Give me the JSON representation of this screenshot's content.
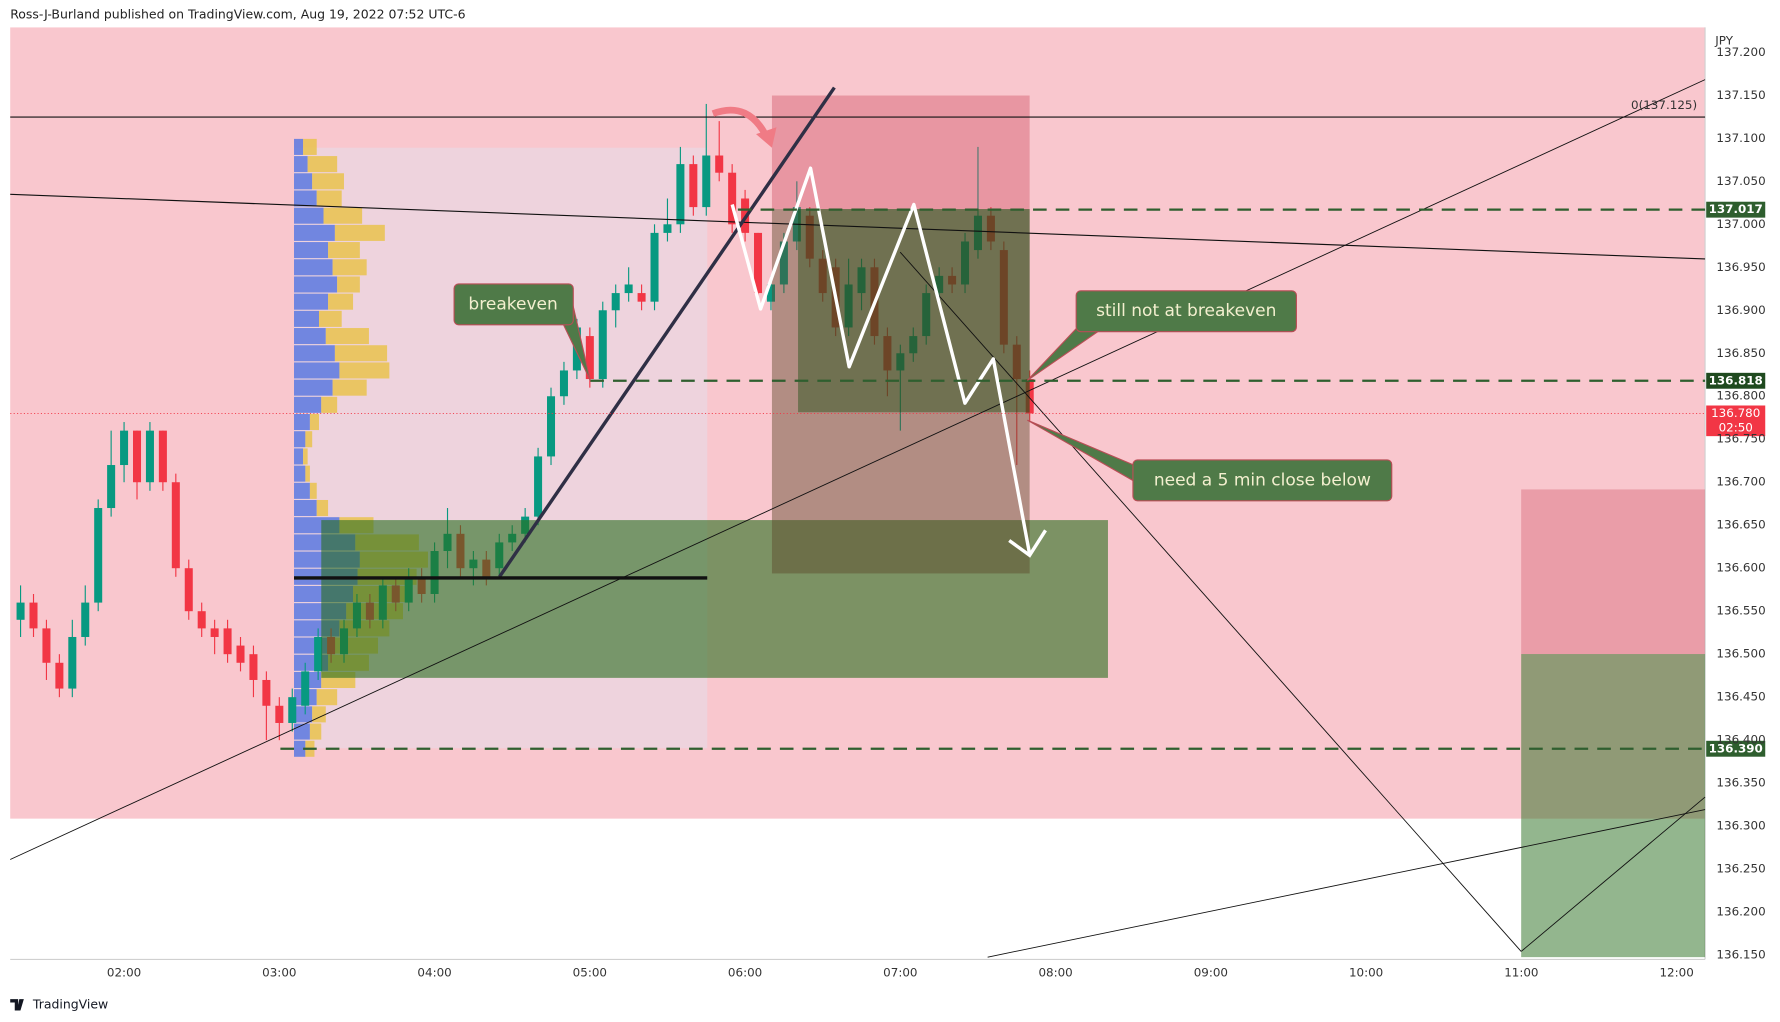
{
  "header": "Ross-J-Burland published on TradingView.com, Aug 19, 2022 07:52 UTC-6",
  "footer_logo": "TradingView",
  "chart_data": {
    "type": "candlestick",
    "currency": "JPY",
    "x": [
      "01:20",
      "01:25",
      "01:30",
      "01:35",
      "01:40",
      "01:45",
      "01:50",
      "01:55",
      "02:00",
      "02:05",
      "02:10",
      "02:15",
      "02:20",
      "02:25",
      "02:30",
      "02:35",
      "02:40",
      "02:45",
      "02:50",
      "02:55",
      "03:00",
      "03:05",
      "03:10",
      "03:15",
      "03:20",
      "03:25",
      "03:30",
      "03:35",
      "03:40",
      "03:45",
      "03:50",
      "03:55",
      "04:00",
      "04:05",
      "04:10",
      "04:15",
      "04:20",
      "04:25",
      "04:30",
      "04:35",
      "04:40",
      "04:45",
      "04:50",
      "04:55",
      "05:00",
      "05:05",
      "05:10",
      "05:15",
      "05:20",
      "05:25",
      "05:30",
      "05:35",
      "05:40",
      "05:45",
      "05:50",
      "05:55",
      "06:00",
      "06:05",
      "06:10",
      "06:15",
      "06:20",
      "06:25",
      "06:30",
      "06:35",
      "06:40",
      "06:45",
      "06:50",
      "06:55",
      "07:00",
      "07:05",
      "07:10",
      "07:15",
      "07:20",
      "07:25",
      "07:30",
      "07:35",
      "07:40",
      "07:45",
      "07:50"
    ],
    "open": [
      136.54,
      136.56,
      136.53,
      136.49,
      136.46,
      136.52,
      136.56,
      136.67,
      136.72,
      136.76,
      136.7,
      136.76,
      136.7,
      136.6,
      136.55,
      136.53,
      136.53,
      136.51,
      136.5,
      136.47,
      136.44,
      136.42,
      136.44,
      136.48,
      136.52,
      136.5,
      136.53,
      136.56,
      136.54,
      136.58,
      136.56,
      136.59,
      136.57,
      136.62,
      136.64,
      136.6,
      136.61,
      136.6,
      136.63,
      136.64,
      136.66,
      136.73,
      136.8,
      136.83,
      136.87,
      136.82,
      136.9,
      136.92,
      136.92,
      136.91,
      136.99,
      137.0,
      137.07,
      137.02,
      137.08,
      137.06,
      137.03,
      136.99,
      136.91,
      136.93,
      136.98,
      137.01,
      136.96,
      136.95,
      136.88,
      136.92,
      136.95,
      136.87,
      136.83,
      136.85,
      136.87,
      136.92,
      136.94,
      136.93,
      136.97,
      137.01,
      136.97,
      136.86,
      136.82
    ],
    "high": [
      136.58,
      136.57,
      136.54,
      136.5,
      136.54,
      136.58,
      136.68,
      136.76,
      136.77,
      136.76,
      136.77,
      136.76,
      136.71,
      136.61,
      136.56,
      136.54,
      136.54,
      136.52,
      136.51,
      136.48,
      136.45,
      136.46,
      136.49,
      136.53,
      136.53,
      136.54,
      136.57,
      136.57,
      136.59,
      136.59,
      136.6,
      136.6,
      136.63,
      136.67,
      136.65,
      136.62,
      136.62,
      136.64,
      136.65,
      136.67,
      136.74,
      136.81,
      136.84,
      136.89,
      136.88,
      136.91,
      136.93,
      136.95,
      136.93,
      137.0,
      137.03,
      137.09,
      137.08,
      137.14,
      137.12,
      137.07,
      137.04,
      136.99,
      136.94,
      136.99,
      137.05,
      137.02,
      136.97,
      136.96,
      136.96,
      136.96,
      136.96,
      136.88,
      136.86,
      136.88,
      136.93,
      136.95,
      136.95,
      136.99,
      137.09,
      137.02,
      136.98,
      136.87,
      136.83
    ],
    "low": [
      136.52,
      136.52,
      136.47,
      136.45,
      136.45,
      136.51,
      136.55,
      136.66,
      136.7,
      136.68,
      136.69,
      136.69,
      136.59,
      136.54,
      136.52,
      136.5,
      136.49,
      136.48,
      136.45,
      136.4,
      136.4,
      136.41,
      136.43,
      136.47,
      136.49,
      136.49,
      136.52,
      136.53,
      136.53,
      136.55,
      136.55,
      136.56,
      136.56,
      136.6,
      136.59,
      136.58,
      136.58,
      136.59,
      136.62,
      136.63,
      136.65,
      136.72,
      136.79,
      136.82,
      136.81,
      136.81,
      136.88,
      136.91,
      136.9,
      136.9,
      136.98,
      136.99,
      137.01,
      137.01,
      137.05,
      136.99,
      136.98,
      136.91,
      136.9,
      136.92,
      136.97,
      136.95,
      136.91,
      136.87,
      136.87,
      136.9,
      136.86,
      136.8,
      136.76,
      136.84,
      136.86,
      136.91,
      136.92,
      136.92,
      136.96,
      136.97,
      136.85,
      136.72,
      136.77
    ],
    "close": [
      136.56,
      136.53,
      136.49,
      136.46,
      136.52,
      136.56,
      136.67,
      136.72,
      136.76,
      136.7,
      136.76,
      136.7,
      136.6,
      136.55,
      136.53,
      136.52,
      136.5,
      136.49,
      136.47,
      136.44,
      136.42,
      136.45,
      136.48,
      136.52,
      136.5,
      136.53,
      136.56,
      136.54,
      136.58,
      136.56,
      136.59,
      136.57,
      136.62,
      136.64,
      136.6,
      136.61,
      136.59,
      136.63,
      136.64,
      136.66,
      136.73,
      136.8,
      136.83,
      136.88,
      136.82,
      136.9,
      136.92,
      136.93,
      136.91,
      136.99,
      137.0,
      137.07,
      137.02,
      137.08,
      137.06,
      137.0,
      136.99,
      136.92,
      136.93,
      136.98,
      137.02,
      136.96,
      136.92,
      136.88,
      136.93,
      136.95,
      136.87,
      136.83,
      136.85,
      136.87,
      136.92,
      136.94,
      136.93,
      136.98,
      137.01,
      136.98,
      136.86,
      136.82,
      136.78
    ],
    "up_color": "#089981",
    "down_color": "#f23645",
    "xlim": [
      "01:16",
      "12:11"
    ],
    "xticks": [
      "02:00",
      "03:00",
      "04:00",
      "05:00",
      "06:00",
      "07:00",
      "08:00",
      "09:00",
      "10:00",
      "11:00",
      "12:00"
    ],
    "ylim": [
      136.145,
      137.229
    ],
    "yticks": [
      {
        "value": 136.15,
        "label": "136.150"
      },
      {
        "value": 136.2,
        "label": "136.200"
      },
      {
        "value": 136.25,
        "label": "136.250"
      },
      {
        "value": 136.3,
        "label": "136.300"
      },
      {
        "value": 136.35,
        "label": "136.350"
      },
      {
        "value": 136.4,
        "label": "136.400"
      },
      {
        "value": 136.45,
        "label": "136.450"
      },
      {
        "value": 136.5,
        "label": "136.500"
      },
      {
        "value": 136.55,
        "label": "136.550"
      },
      {
        "value": 136.6,
        "label": "136.600"
      },
      {
        "value": 136.65,
        "label": "136.650"
      },
      {
        "value": 136.7,
        "label": "136.700"
      },
      {
        "value": 136.75,
        "label": "136.750"
      },
      {
        "value": 136.8,
        "label": "136.800"
      },
      {
        "value": 136.85,
        "label": "136.850"
      },
      {
        "value": 136.9,
        "label": "136.900"
      },
      {
        "value": 136.95,
        "label": "136.950"
      },
      {
        "value": 137.0,
        "label": "137.000"
      },
      {
        "value": 137.05,
        "label": "137.050"
      },
      {
        "value": 137.1,
        "label": "137.100"
      },
      {
        "value": 137.15,
        "label": "137.150"
      },
      {
        "value": 137.2,
        "label": "137.200"
      }
    ],
    "levels": [
      137.017,
      136.818,
      {
        "value": 136.39,
        "label": "136.390"
      }
    ],
    "level_colors": [
      "#2e5e2e",
      "#1f4a1f",
      "#2e5e2e"
    ],
    "last_price": {
      "value": 136.78,
      "label": "136.780"
    },
    "countdown": "02:50",
    "fib_label": "0(137.125)",
    "annotations": [
      "breakeven",
      "still not at breakeven",
      "need a 5 min close below"
    ],
    "volume_profile": {
      "prices": [
        136.39,
        136.41,
        136.43,
        136.45,
        136.47,
        136.49,
        136.51,
        136.53,
        136.55,
        136.57,
        136.59,
        136.61,
        136.63,
        136.65,
        136.67,
        136.69,
        136.71,
        136.73,
        136.75,
        136.77,
        136.79,
        136.81,
        136.83,
        136.85,
        136.87,
        136.89,
        136.91,
        136.93,
        136.95,
        136.97,
        136.99,
        137.01,
        137.03,
        137.05,
        137.07,
        137.09
      ],
      "up": [
        10,
        14,
        16,
        20,
        24,
        30,
        34,
        40,
        46,
        52,
        56,
        58,
        54,
        40,
        20,
        14,
        10,
        8,
        10,
        14,
        24,
        34,
        40,
        36,
        28,
        22,
        30,
        38,
        34,
        30,
        36,
        26,
        20,
        16,
        12,
        8
      ],
      "down": [
        8,
        10,
        12,
        18,
        30,
        36,
        40,
        44,
        50,
        48,
        52,
        60,
        56,
        30,
        10,
        6,
        4,
        4,
        6,
        8,
        14,
        30,
        44,
        46,
        38,
        20,
        22,
        20,
        30,
        28,
        44,
        34,
        22,
        28,
        26,
        12
      ],
      "up_color": "#5a78e0",
      "down_color": "#e9c24e"
    }
  }
}
